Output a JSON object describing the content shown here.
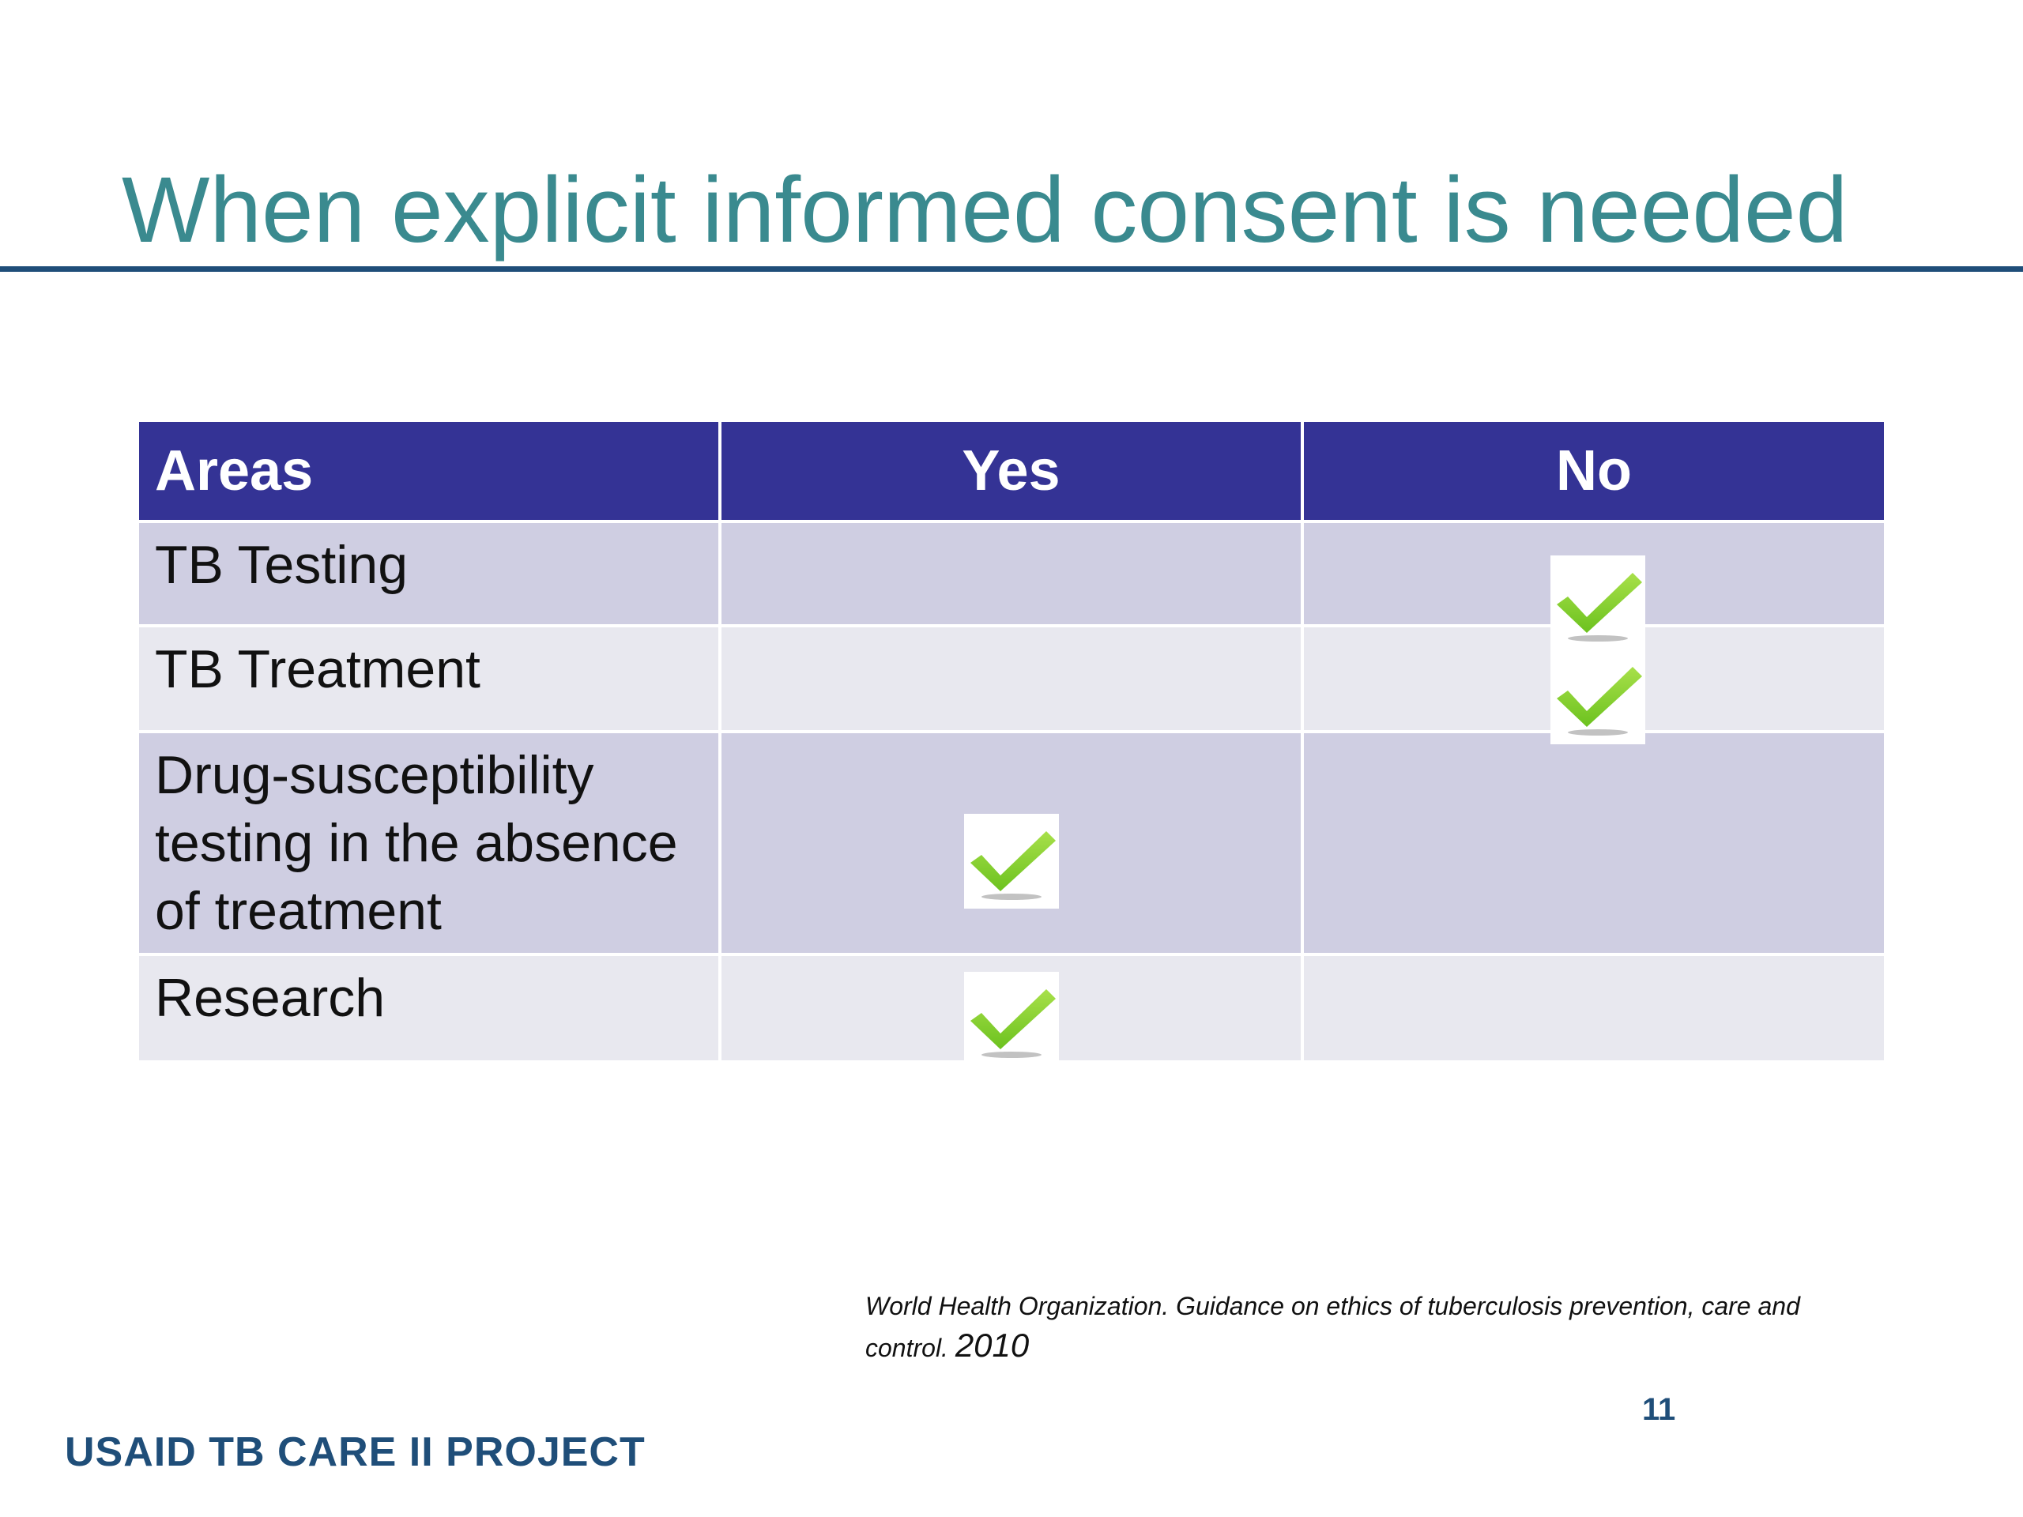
{
  "slide": {
    "title": "When explicit informed consent is needed",
    "page_number": "11",
    "footer": "USAID TB CARE II PROJECT"
  },
  "table": {
    "headers": {
      "areas": "Areas",
      "yes": "Yes",
      "no": "No"
    },
    "rows": [
      {
        "area": "TB Testing",
        "yes": false,
        "no": true
      },
      {
        "area": "TB Treatment",
        "yes": false,
        "no": true
      },
      {
        "area": "Drug-susceptibility testing in the absence of treatment",
        "yes": true,
        "no": false
      },
      {
        "area": "Research",
        "yes": true,
        "no": false
      }
    ]
  },
  "citation": {
    "text": "World Health Organization. Guidance on ethics of tuberculosis prevention, care and control.",
    "year": "2010"
  },
  "colors": {
    "title": "#3a8a8f",
    "header_bg": "#343395",
    "row_odd": "#cfcee2",
    "row_even": "#e8e8ef",
    "rule": "#1f4e79",
    "check": "#6cc21f"
  },
  "icons": {
    "check": "checkmark-icon"
  }
}
